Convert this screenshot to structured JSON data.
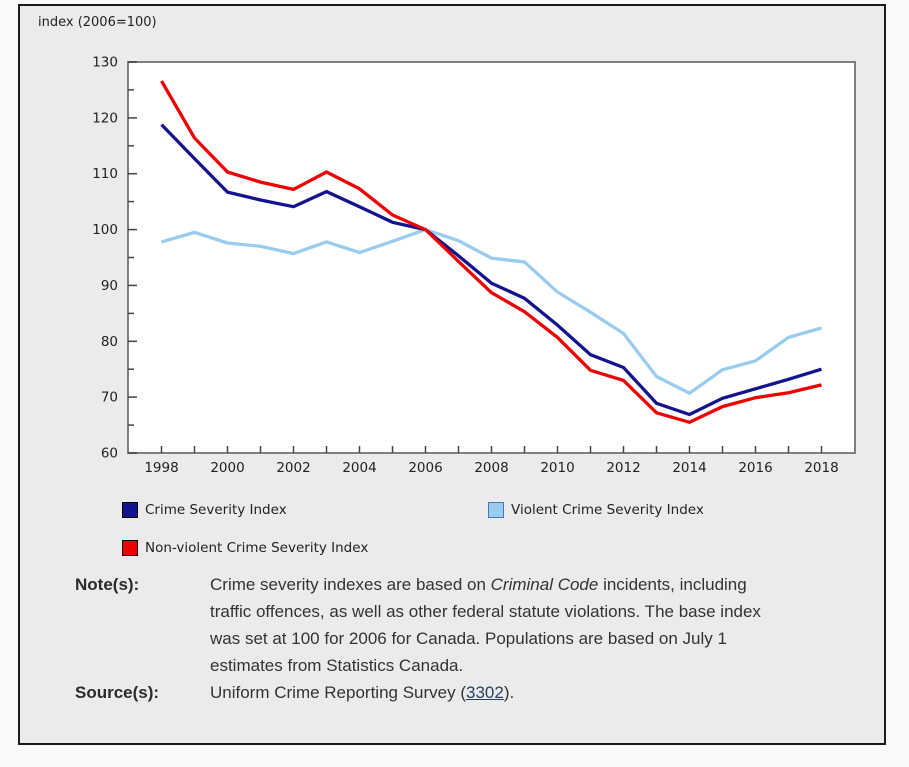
{
  "chart_data": {
    "type": "line",
    "title": "index (2006=100)",
    "xlabel": "",
    "ylabel": "index (2006=100)",
    "x": [
      1998,
      1999,
      2000,
      2001,
      2002,
      2003,
      2004,
      2005,
      2006,
      2007,
      2008,
      2009,
      2010,
      2011,
      2012,
      2013,
      2014,
      2015,
      2016,
      2017,
      2018
    ],
    "x_tick_labels": [
      "1998",
      "2000",
      "2002",
      "2004",
      "2006",
      "2008",
      "2010",
      "2012",
      "2014",
      "2016",
      "2018"
    ],
    "ylim": [
      60,
      130
    ],
    "y_major_ticks": [
      60,
      70,
      80,
      90,
      100,
      110,
      120,
      130
    ],
    "y_minor_step": 5,
    "grid": false,
    "legend_position": "below",
    "draw_order": [
      1,
      0,
      2
    ],
    "series": [
      {
        "id": "crime-severity-index",
        "name": "Crime Severity Index",
        "color": "#13138d",
        "swatch_border": "#000000",
        "values": [
          118.8,
          112.7,
          106.7,
          105.3,
          104.1,
          106.8,
          104.1,
          101.3,
          100.0,
          95.3,
          90.4,
          87.7,
          82.9,
          77.6,
          75.3,
          68.9,
          66.9,
          69.8,
          71.5,
          73.2,
          75.0
        ]
      },
      {
        "id": "violent-crime-severity-index",
        "name": "Violent Crime Severity Index",
        "color": "#99ccee",
        "swatch_border": "#4477bb",
        "values": [
          97.8,
          99.5,
          97.6,
          97.0,
          95.7,
          97.8,
          95.9,
          97.9,
          100.0,
          98.0,
          94.9,
          94.2,
          88.8,
          85.2,
          81.4,
          73.7,
          70.7,
          74.9,
          76.5,
          80.7,
          82.4
        ]
      },
      {
        "id": "non-violent-crime-severity-index",
        "name": "Non-violent Crime Severity Index",
        "color": "#ee0000",
        "swatch_border": "#000000",
        "values": [
          126.6,
          116.4,
          110.3,
          108.5,
          107.2,
          110.3,
          107.3,
          102.6,
          100.0,
          94.3,
          88.7,
          85.3,
          80.7,
          74.8,
          73.0,
          67.2,
          65.5,
          68.3,
          69.9,
          70.8,
          72.2
        ]
      }
    ]
  },
  "notes": {
    "label": "Note(s):",
    "text_before_italic": "Crime severity indexes are based on ",
    "italic_text": "Criminal Code",
    "text_after_italic": " incidents, including traffic offences, as well as other federal statute violations. The base index was set at 100 for 2006 for Canada. Populations are based on July 1 estimates from Statistics Canada."
  },
  "source": {
    "label": "Source(s):",
    "text_before_link": "Uniform Crime Reporting Survey (",
    "link_text": "3302",
    "text_after_link": ")."
  },
  "colors": {
    "page_background": "#fafafa",
    "frame_background": "#ebebeb",
    "frame_border": "#1a1a1a",
    "plot_background": "#ffffff",
    "plot_border": "#7f7f7f",
    "axis_text": "#222222",
    "note_text": "#333333",
    "link": "#284162"
  }
}
